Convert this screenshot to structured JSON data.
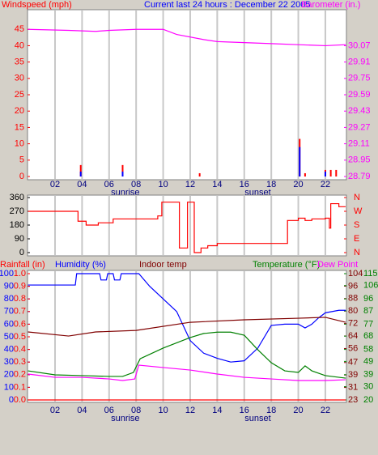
{
  "chart_data": [
    {
      "type": "bar",
      "title": "Current last 24 hours : December 22 2005",
      "ylabel": "Windspeed (mph)",
      "xlim": [
        0,
        23.5
      ],
      "xticks": [
        {
          "value": 2,
          "label": "02"
        },
        {
          "value": 4,
          "label": "04"
        },
        {
          "value": 6,
          "label": "06"
        },
        {
          "value": 8,
          "label": "08"
        },
        10,
        12,
        14,
        16,
        18,
        20,
        22
      ],
      "ylim": [
        0,
        51
      ],
      "yticks": [
        0,
        5,
        10,
        15,
        20,
        25,
        30,
        35,
        40,
        45
      ],
      "y2lim": [
        28.79,
        30.422
      ],
      "y2ticks": [
        28.79,
        28.95,
        29.11,
        29.27,
        29.43,
        29.59,
        29.75,
        29.91,
        30.07
      ],
      "axis_colors": {
        "y": "#ff0000",
        "y2": "#ff00ff"
      },
      "annotations": [
        {
          "text": "sunrise",
          "x": 7.2
        },
        {
          "text": "sunset",
          "x": 17
        }
      ],
      "series": [
        {
          "type": "bar",
          "color": "#ff0000",
          "x": [
            3.9,
            7,
            12.7,
            20.1,
            20.5,
            22,
            22.4,
            22.8
          ],
          "values": [
            3.5,
            3.5,
            1,
            11.5,
            1,
            2,
            2,
            2
          ]
        },
        {
          "type": "bar",
          "color": "#0000ff",
          "x": [
            3.9,
            7,
            20.1,
            22
          ],
          "values": [
            1.5,
            1.5,
            9,
            1.5
          ]
        },
        {
          "type": "line",
          "name": "Barometer (in.)",
          "axis": "y2",
          "color": "#ff00ff",
          "x": [
            0,
            3,
            5,
            6,
            8,
            10,
            11,
            13,
            14,
            16,
            18,
            20,
            22,
            23.5
          ],
          "values": [
            30.23,
            30.22,
            30.21,
            30.22,
            30.23,
            30.23,
            30.18,
            30.13,
            30.11,
            30.1,
            30.09,
            30.08,
            30.07,
            30.08
          ]
        }
      ]
    },
    {
      "type": "line",
      "step": true,
      "xlim": [
        0,
        23.5
      ],
      "ylim": [
        0,
        360
      ],
      "yticks": [
        0,
        90,
        180,
        270,
        360
      ],
      "y2lim": [
        0,
        360
      ],
      "y2ticks": [
        {
          "value": 360,
          "label": "N"
        },
        {
          "value": 270,
          "label": "W"
        },
        {
          "value": 180,
          "label": "S"
        },
        {
          "value": 90,
          "label": "E"
        },
        {
          "value": 0,
          "label": "N"
        }
      ],
      "axis_colors": {
        "y": "#000000",
        "y2": "#ff0000"
      },
      "series": [
        {
          "color": "#ff0000",
          "x": [
            0,
            3.7,
            4.3,
            5.2,
            6.3,
            9.6,
            9.9,
            11.2,
            11.8,
            12.3,
            12.8,
            13.3,
            14,
            19.2,
            20,
            20.5,
            21,
            22,
            22.3,
            22.4,
            23,
            23.5
          ],
          "values": [
            270,
            205,
            180,
            195,
            220,
            240,
            330,
            30,
            330,
            0,
            30,
            45,
            60,
            210,
            225,
            210,
            220,
            225,
            160,
            320,
            300,
            300
          ]
        }
      ]
    },
    {
      "type": "line",
      "xlim": [
        0,
        23.5
      ],
      "xticks": [
        {
          "value": 2,
          "label": "02"
        },
        {
          "value": 4,
          "label": "04"
        },
        {
          "value": 6,
          "label": "06"
        },
        {
          "value": 8,
          "label": "08"
        },
        10,
        12,
        14,
        16,
        18,
        20,
        22
      ],
      "ylim": [
        0,
        100
      ],
      "yticks": [
        0,
        10,
        20,
        30,
        40,
        50,
        60,
        70,
        80,
        90,
        100
      ],
      "rainlim": [
        0,
        1
      ],
      "rainticks": [
        {
          "value": 0,
          "label": "0.0"
        },
        0.1,
        0.2,
        0.3,
        0.4,
        0.5,
        0.6,
        0.7,
        0.8,
        0.9,
        {
          "value": 1,
          "label": "1.0"
        }
      ],
      "y2lim": [
        23,
        104
      ],
      "y2ticks": [
        23,
        31,
        39,
        47,
        56,
        64,
        72,
        80,
        88,
        96,
        104
      ],
      "y3lim": [
        20,
        115
      ],
      "y3ticks": [
        20,
        30,
        39,
        49,
        58,
        68,
        77,
        87,
        96,
        106,
        115
      ],
      "axis_colors": {
        "y": "#0000ff",
        "rain": "#ff0000",
        "y2": "#800000",
        "y3": "#008000"
      },
      "annotations": [
        {
          "text": "sunrise",
          "x": 7.2
        },
        {
          "text": "sunset",
          "x": 17
        }
      ],
      "series": [
        {
          "name": "Rainfall (in)",
          "axis": "rain",
          "color": "#ff0000",
          "x": [
            0,
            23.5
          ],
          "values": [
            0,
            0
          ]
        },
        {
          "name": "Humidity (%)",
          "axis": "y",
          "color": "#0000ff",
          "x": [
            0,
            3.5,
            3.6,
            5.3,
            5.4,
            5.8,
            5.9,
            6.3,
            6.4,
            6.8,
            6.9,
            8.2,
            9,
            10,
            11,
            12,
            13,
            14,
            15,
            16,
            17,
            18,
            19,
            20,
            20.5,
            21,
            21.5,
            22,
            23,
            23.5
          ],
          "values": [
            91,
            91,
            100,
            100,
            95,
            95,
            100,
            100,
            95,
            95,
            100,
            100,
            90,
            80,
            70,
            47,
            37,
            33,
            30,
            31,
            41,
            59,
            60,
            60,
            57,
            60,
            65,
            69,
            71,
            71
          ]
        },
        {
          "name": "Indoor temp",
          "axis": "y2",
          "color": "#800000",
          "x": [
            0,
            3,
            5,
            8,
            12,
            16,
            20,
            22,
            23.5
          ],
          "values": [
            66.6,
            64,
            66.6,
            67.6,
            72.8,
            74.4,
            75.4,
            76,
            72.8
          ]
        },
        {
          "name": "Temperature (°F)",
          "axis": "y3",
          "color": "#008000",
          "x": [
            0,
            2,
            4,
            6,
            7,
            7.8,
            8.3,
            10,
            12,
            13,
            14,
            15,
            16,
            17,
            18,
            19,
            20,
            20.5,
            21,
            22,
            23.5
          ],
          "values": [
            41.9,
            38.9,
            38.3,
            37.7,
            37.7,
            40.7,
            51,
            59,
            66.9,
            70,
            71,
            71,
            68.7,
            57.8,
            48,
            41.9,
            40.7,
            45.6,
            41.9,
            38.3,
            36.4
          ]
        },
        {
          "name": "Dew Point",
          "axis": "y3",
          "color": "#ff00ff",
          "x": [
            0,
            2,
            4,
            6,
            7,
            7.9,
            8.2,
            10,
            12,
            14,
            16,
            18,
            20,
            22,
            23.5
          ],
          "values": [
            39.5,
            37,
            37,
            35.8,
            34.6,
            35.8,
            46.2,
            44.4,
            42.5,
            39.5,
            37,
            35.8,
            34.6,
            34.6,
            35.2
          ]
        }
      ]
    }
  ]
}
